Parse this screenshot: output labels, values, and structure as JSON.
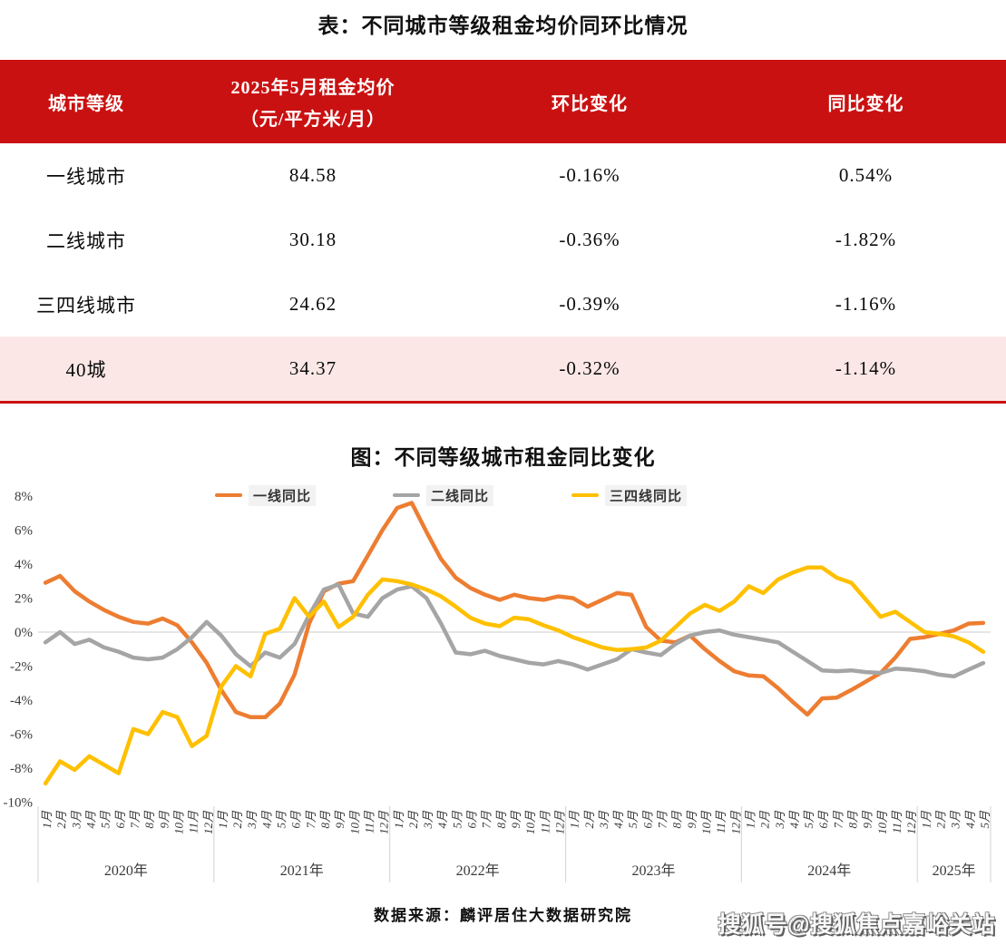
{
  "colors": {
    "header_red": "#CA1111",
    "highlight_pink": "#FBE8E6",
    "zero_gridline": "#D8D8D8",
    "separator_gray": "#D9D9D9",
    "axis_text": "#3a3a3a",
    "series_first_tier": "#ED7D31",
    "series_second_tier": "#A5A5A5",
    "series_third_fourth_tier": "#FFC000"
  },
  "table": {
    "title": "表：不同城市等级租金均价同环比情况",
    "columns": [
      {
        "label": "城市等级"
      },
      {
        "label": "2025年5月租金均价",
        "sublabel": "（元/平方米/月）"
      },
      {
        "label": "环比变化"
      },
      {
        "label": "同比变化"
      }
    ],
    "rows": [
      {
        "tier": "一线城市",
        "price": "84.58",
        "mom": "-0.16%",
        "yoy": "0.54%"
      },
      {
        "tier": "二线城市",
        "price": "30.18",
        "mom": "-0.36%",
        "yoy": "-1.82%"
      },
      {
        "tier": "三四线城市",
        "price": "24.62",
        "mom": "-0.39%",
        "yoy": "-1.16%"
      },
      {
        "tier": "40城",
        "price": "34.37",
        "mom": "-0.32%",
        "yoy": "-1.14%"
      }
    ]
  },
  "chart_data": {
    "type": "line",
    "title": "图：不同等级城市租金同比变化",
    "ylabel": "",
    "xlabel": "",
    "ylim": [
      -10,
      8
    ],
    "y_ticks": [
      8,
      6,
      4,
      2,
      0,
      -2,
      -4,
      -6,
      -8,
      -10
    ],
    "y_tick_suffix": "%",
    "grid": "horizontal line at 0% only",
    "legend_position": "top-inside",
    "month_labels": [
      "1月",
      "2月",
      "3月",
      "4月",
      "5月",
      "6月",
      "7月",
      "8月",
      "9月",
      "10月",
      "11月",
      "12月"
    ],
    "x_years": [
      {
        "label": "2020年",
        "months": 12
      },
      {
        "label": "2021年",
        "months": 12
      },
      {
        "label": "2022年",
        "months": 12
      },
      {
        "label": "2023年",
        "months": 12
      },
      {
        "label": "2024年",
        "months": 12
      },
      {
        "label": "2025年",
        "months": 5
      }
    ],
    "series": [
      {
        "name": "一线同比",
        "color": "#ED7D31",
        "values": [
          2.9,
          3.3,
          2.4,
          1.8,
          1.3,
          0.9,
          0.6,
          0.5,
          0.8,
          0.4,
          -0.6,
          -1.8,
          -3.4,
          -4.7,
          -5.0,
          -5.0,
          -4.2,
          -2.5,
          0.5,
          2.4,
          2.85,
          3.0,
          4.5,
          6.0,
          7.3,
          7.6,
          5.9,
          4.3,
          3.2,
          2.6,
          2.2,
          1.9,
          2.2,
          2.0,
          1.9,
          2.1,
          2.0,
          1.5,
          1.9,
          2.3,
          2.2,
          0.3,
          -0.5,
          -0.6,
          -0.2,
          -1.0,
          -1.7,
          -2.3,
          -2.55,
          -2.6,
          -3.3,
          -4.1,
          -4.85,
          -3.9,
          -3.85,
          -3.4,
          -2.9,
          -2.4,
          -1.5,
          -0.4,
          -0.3,
          -0.1,
          0.1,
          0.5,
          0.54
        ]
      },
      {
        "name": "二线同比",
        "color": "#A5A5A5",
        "values": [
          -0.6,
          0.0,
          -0.7,
          -0.45,
          -0.9,
          -1.15,
          -1.5,
          -1.6,
          -1.5,
          -1.0,
          -0.3,
          0.6,
          -0.2,
          -1.3,
          -2.0,
          -1.2,
          -1.5,
          -0.7,
          1.0,
          2.5,
          2.8,
          1.1,
          0.9,
          2.0,
          2.5,
          2.7,
          2.0,
          0.5,
          -1.2,
          -1.3,
          -1.1,
          -1.4,
          -1.6,
          -1.8,
          -1.9,
          -1.7,
          -1.9,
          -2.2,
          -1.9,
          -1.6,
          -1.0,
          -1.2,
          -1.35,
          -0.7,
          -0.2,
          0.0,
          0.1,
          -0.15,
          -0.3,
          -0.45,
          -0.6,
          -1.15,
          -1.7,
          -2.25,
          -2.3,
          -2.25,
          -2.35,
          -2.4,
          -2.15,
          -2.2,
          -2.3,
          -2.5,
          -2.6,
          -2.2,
          -1.82
        ]
      },
      {
        "name": "三四线同比",
        "color": "#FFC000",
        "values": [
          -8.9,
          -7.6,
          -8.1,
          -7.3,
          -7.8,
          -8.3,
          -5.7,
          -6.0,
          -4.7,
          -5.0,
          -6.7,
          -6.1,
          -3.2,
          -2.0,
          -2.6,
          -0.1,
          0.2,
          2.0,
          0.9,
          1.8,
          0.3,
          0.9,
          2.2,
          3.1,
          3.0,
          2.8,
          2.5,
          2.1,
          1.5,
          0.85,
          0.5,
          0.35,
          0.85,
          0.75,
          0.4,
          0.1,
          -0.3,
          -0.6,
          -0.9,
          -1.05,
          -1.0,
          -0.9,
          -0.5,
          0.3,
          1.1,
          1.6,
          1.25,
          1.8,
          2.7,
          2.3,
          3.1,
          3.5,
          3.8,
          3.8,
          3.2,
          2.9,
          1.9,
          0.9,
          1.2,
          0.6,
          0.0,
          -0.1,
          -0.25,
          -0.6,
          -1.16
        ]
      }
    ]
  },
  "footer": {
    "source": "数据来源：麟评居住大数据研究院",
    "watermark": "搜狐号@搜狐焦点嘉峪关站"
  }
}
